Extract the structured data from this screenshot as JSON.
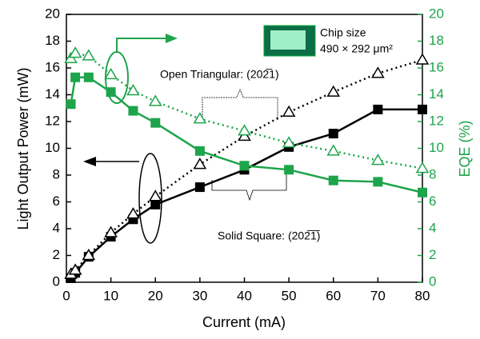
{
  "chart_data": {
    "type": "line",
    "x_label": "Current (mA)",
    "y_label": "Light Output Power (mW)",
    "y2_label": "EQE (%)",
    "x": [
      1,
      2,
      5,
      10,
      15,
      20,
      30,
      40,
      50,
      60,
      70,
      80
    ],
    "xlim": [
      0,
      80
    ],
    "xticks": [
      0,
      10,
      20,
      30,
      40,
      50,
      60,
      70,
      80
    ],
    "ylim": [
      0,
      20
    ],
    "yticks": [
      0,
      2,
      4,
      6,
      8,
      10,
      12,
      14,
      16,
      18,
      20
    ],
    "y2lim": [
      0,
      20
    ],
    "y2ticks": [
      0,
      2,
      4,
      6,
      8,
      10,
      12,
      14,
      16,
      18,
      20
    ],
    "y2_color": "#1ea44b",
    "series": [
      {
        "color": "#000000",
        "marker": "square",
        "filled": true,
        "dashed": false,
        "values": [
          0.3,
          0.7,
          1.9,
          3.4,
          4.7,
          5.8,
          7.1,
          8.4,
          10.1,
          11.1,
          12.9,
          12.9
        ]
      },
      {
        "color": "#000000",
        "marker": "triangle",
        "filled": false,
        "dashed": true,
        "values": [
          0.6,
          0.9,
          2.0,
          3.7,
          5.1,
          6.4,
          8.8,
          10.9,
          12.7,
          14.2,
          15.6,
          16.6
        ]
      },
      {
        "color": "#1ea44b",
        "marker": "square",
        "filled": true,
        "dashed": false,
        "axis": "y2",
        "values": [
          13.3,
          15.3,
          15.3,
          14.2,
          12.8,
          11.9,
          9.8,
          8.7,
          8.4,
          7.6,
          7.5,
          6.7
        ]
      },
      {
        "color": "#1ea44b",
        "marker": "triangle",
        "filled": false,
        "dashed": true,
        "axis": "y2",
        "values": [
          16.7,
          17.1,
          16.9,
          15.5,
          14.3,
          13.5,
          12.2,
          11.3,
          10.4,
          9.8,
          9.1,
          8.5
        ]
      }
    ],
    "annotations": [
      "Open Triangular: (202̅1)",
      "Solid Square: (202̅1̅)",
      "Chip size",
      "490 × 292 μm²"
    ]
  }
}
